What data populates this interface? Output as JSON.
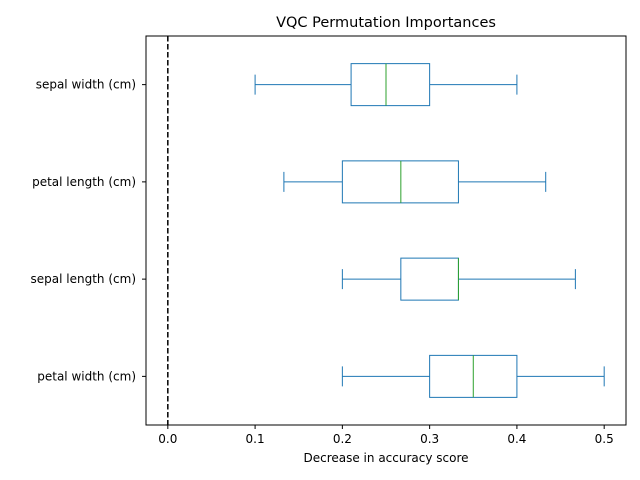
{
  "chart_data": {
    "type": "boxplot",
    "orientation": "horizontal",
    "title": "VQC Permutation Importances",
    "xlabel": "Decrease in accuracy score",
    "ylabel": "",
    "xlim": [
      -0.025,
      0.525
    ],
    "x_ticks": [
      0.0,
      0.1,
      0.2,
      0.3,
      0.4,
      0.5
    ],
    "x_tick_labels": [
      "0.0",
      "0.1",
      "0.2",
      "0.3",
      "0.4",
      "0.5"
    ],
    "grid": false,
    "reference_line": {
      "x": 0.0,
      "style": "dashed",
      "color": "#000000"
    },
    "colors": {
      "box": "#1f77b4",
      "median": "#2ca02c"
    },
    "categories": [
      "sepal width (cm)",
      "petal length (cm)",
      "sepal length (cm)",
      "petal width (cm)"
    ],
    "boxes": [
      {
        "label": "sepal width (cm)",
        "whisker_low": 0.1,
        "q1": 0.21,
        "median": 0.25,
        "q3": 0.3,
        "whisker_high": 0.4
      },
      {
        "label": "petal length (cm)",
        "whisker_low": 0.133,
        "q1": 0.2,
        "median": 0.267,
        "q3": 0.333,
        "whisker_high": 0.433
      },
      {
        "label": "sepal length (cm)",
        "whisker_low": 0.2,
        "q1": 0.267,
        "median": 0.333,
        "q3": 0.333,
        "whisker_high": 0.467
      },
      {
        "label": "petal width (cm)",
        "whisker_low": 0.2,
        "q1": 0.3,
        "median": 0.35,
        "q3": 0.4,
        "whisker_high": 0.5
      }
    ]
  }
}
